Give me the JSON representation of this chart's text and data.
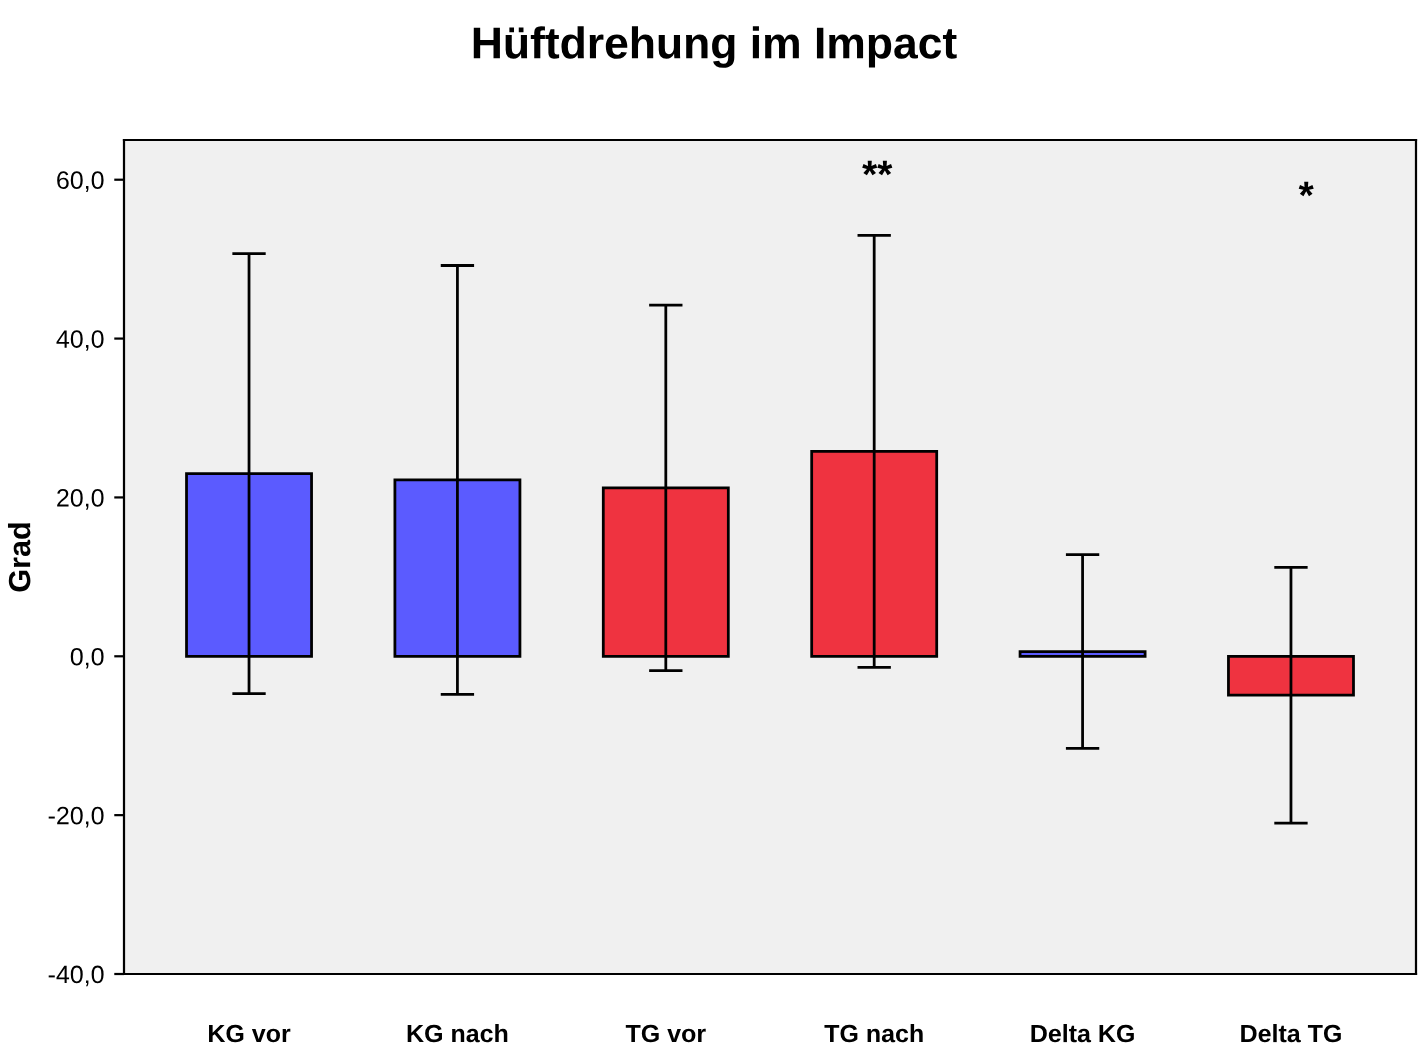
{
  "chart_data": {
    "type": "bar",
    "title": "Hüftdrehung im Impact",
    "ylabel": "Grad",
    "categories": [
      "KG vor",
      "KG nach",
      "TG vor",
      "TG nach",
      "Delta KG",
      "Delta TG"
    ],
    "values": [
      23.0,
      22.2,
      21.2,
      25.8,
      0.6,
      -4.9
    ],
    "colors": [
      "#5b5bff",
      "#5b5bff",
      "#ef3340",
      "#ef3340",
      "#5b5bff",
      "#ef3340"
    ],
    "errors": [
      27.7,
      27.0,
      23.0,
      27.2,
      12.2,
      16.1
    ],
    "ylim": [
      -40,
      65
    ],
    "yticks": [
      {
        "value": -40,
        "label": "-40,0"
      },
      {
        "value": -20,
        "label": "-20,0"
      },
      {
        "value": 0,
        "label": "0,0"
      },
      {
        "value": 20,
        "label": "20,0"
      },
      {
        "value": 40,
        "label": "40,0"
      },
      {
        "value": 60,
        "label": "60,0"
      }
    ],
    "annotations": [
      "**",
      "*"
    ],
    "grid": false,
    "legend": false
  }
}
